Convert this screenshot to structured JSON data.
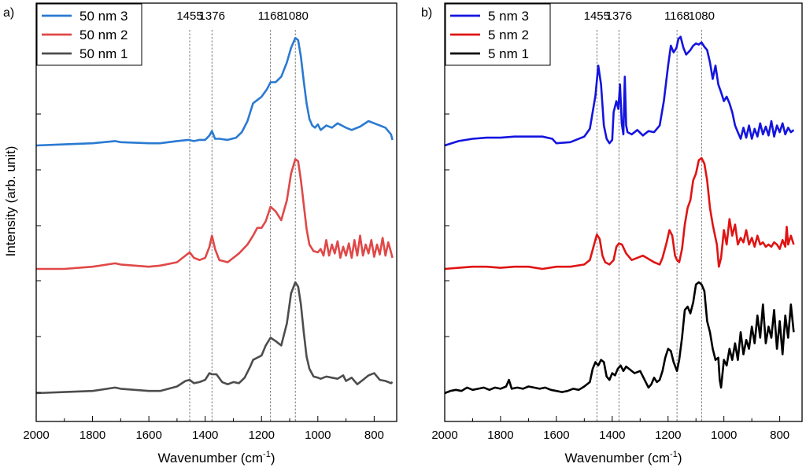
{
  "figure": {
    "ylabel": "Intensity (arb. unit)",
    "xlabel_main": "Wavenumber (cm",
    "xlabel_sup": "-1",
    "xlabel_end": ")"
  },
  "chart_data": [
    {
      "type": "line",
      "panel_label": "a)",
      "xlim": [
        2000,
        720
      ],
      "x_reversed": true,
      "xticks": [
        "2000",
        "1800",
        "1600",
        "1400",
        "1200",
        "1000",
        "800"
      ],
      "xtick_values": [
        2000,
        1800,
        1600,
        1400,
        1200,
        1000,
        800
      ],
      "y_tick_labels_shown": false,
      "peak_markers": [
        {
          "label": "1455",
          "x": 1455
        },
        {
          "label": "1376",
          "x": 1376
        },
        {
          "label": "1168",
          "x": 1168
        },
        {
          "label": "1080",
          "x": 1080
        }
      ],
      "legend": {
        "placement": "top-left"
      },
      "series": [
        {
          "name": "50 nm 3",
          "color": "#2a7ad2",
          "offset": 2,
          "x": [
            2000,
            1900,
            1800,
            1720,
            1700,
            1600,
            1560,
            1500,
            1460,
            1440,
            1420,
            1400,
            1385,
            1376,
            1365,
            1350,
            1320,
            1290,
            1270,
            1250,
            1240,
            1230,
            1215,
            1200,
            1180,
            1168,
            1150,
            1130,
            1110,
            1095,
            1080,
            1070,
            1060,
            1050,
            1040,
            1030,
            1020,
            1010,
            1000,
            990,
            970,
            950,
            930,
            900,
            880,
            850,
            820,
            800,
            780,
            760,
            740,
            735
          ],
          "y": [
            0.0,
            0.01,
            0.02,
            0.04,
            0.03,
            0.02,
            0.02,
            0.04,
            0.05,
            0.04,
            0.05,
            0.05,
            0.09,
            0.13,
            0.06,
            0.06,
            0.05,
            0.07,
            0.12,
            0.22,
            0.3,
            0.38,
            0.41,
            0.44,
            0.51,
            0.57,
            0.57,
            0.62,
            0.75,
            0.88,
            0.97,
            0.95,
            0.8,
            0.58,
            0.38,
            0.24,
            0.18,
            0.16,
            0.19,
            0.14,
            0.18,
            0.16,
            0.2,
            0.16,
            0.14,
            0.17,
            0.22,
            0.2,
            0.18,
            0.16,
            0.1,
            0.05
          ]
        },
        {
          "name": "50 nm 2",
          "color": "#e04848",
          "offset": 1,
          "x": [
            2000,
            1900,
            1800,
            1720,
            1700,
            1600,
            1560,
            1500,
            1470,
            1455,
            1440,
            1420,
            1400,
            1385,
            1376,
            1365,
            1350,
            1320,
            1300,
            1280,
            1250,
            1230,
            1215,
            1200,
            1185,
            1168,
            1150,
            1130,
            1110,
            1095,
            1080,
            1070,
            1060,
            1050,
            1040,
            1030,
            1015,
            1000,
            990,
            980,
            970,
            960,
            950,
            940,
            930,
            920,
            910,
            900,
            890,
            880,
            870,
            860,
            850,
            840,
            830,
            820,
            810,
            800,
            790,
            780,
            770,
            760,
            750,
            740,
            735
          ],
          "y": [
            0.0,
            0.0,
            0.02,
            0.05,
            0.04,
            0.02,
            0.03,
            0.06,
            0.12,
            0.15,
            0.1,
            0.08,
            0.1,
            0.2,
            0.3,
            0.18,
            0.08,
            0.06,
            0.1,
            0.14,
            0.22,
            0.3,
            0.37,
            0.37,
            0.43,
            0.56,
            0.52,
            0.44,
            0.62,
            0.86,
            0.99,
            0.97,
            0.8,
            0.58,
            0.36,
            0.22,
            0.16,
            0.15,
            0.18,
            0.12,
            0.26,
            0.12,
            0.22,
            0.14,
            0.25,
            0.1,
            0.2,
            0.12,
            0.23,
            0.1,
            0.26,
            0.12,
            0.3,
            0.12,
            0.22,
            0.14,
            0.26,
            0.11,
            0.22,
            0.13,
            0.28,
            0.12,
            0.24,
            0.15,
            0.1
          ]
        },
        {
          "name": "50 nm 1",
          "color": "#4d4d4d",
          "offset": 0,
          "x": [
            2000,
            1900,
            1800,
            1720,
            1700,
            1600,
            1560,
            1500,
            1470,
            1455,
            1440,
            1420,
            1400,
            1385,
            1376,
            1360,
            1340,
            1320,
            1300,
            1280,
            1260,
            1240,
            1230,
            1215,
            1200,
            1185,
            1168,
            1150,
            1130,
            1110,
            1095,
            1080,
            1070,
            1060,
            1050,
            1040,
            1030,
            1015,
            1000,
            990,
            970,
            950,
            930,
            910,
            900,
            880,
            860,
            840,
            820,
            800,
            780,
            760,
            740,
            735
          ],
          "y": [
            0.0,
            0.01,
            0.02,
            0.05,
            0.04,
            0.02,
            0.02,
            0.06,
            0.11,
            0.12,
            0.09,
            0.1,
            0.12,
            0.18,
            0.17,
            0.17,
            0.1,
            0.08,
            0.1,
            0.09,
            0.14,
            0.24,
            0.3,
            0.32,
            0.34,
            0.43,
            0.5,
            0.47,
            0.43,
            0.63,
            0.9,
            1.0,
            0.96,
            0.8,
            0.55,
            0.33,
            0.22,
            0.15,
            0.14,
            0.13,
            0.15,
            0.14,
            0.13,
            0.16,
            0.11,
            0.14,
            0.08,
            0.12,
            0.16,
            0.18,
            0.12,
            0.11,
            0.09,
            0.1
          ]
        }
      ]
    },
    {
      "type": "line",
      "panel_label": "b)",
      "xlim": [
        2000,
        720
      ],
      "x_reversed": true,
      "xticks": [
        "2000",
        "1800",
        "1600",
        "1400",
        "1200",
        "1000",
        "800"
      ],
      "xtick_values": [
        2000,
        1800,
        1600,
        1400,
        1200,
        1000,
        800
      ],
      "y_tick_labels_shown": false,
      "peak_markers": [
        {
          "label": "1455",
          "x": 1455
        },
        {
          "label": "1376",
          "x": 1376
        },
        {
          "label": "1168",
          "x": 1168
        },
        {
          "label": "1080",
          "x": 1080
        }
      ],
      "legend": {
        "placement": "top-left"
      },
      "series": [
        {
          "name": "5 nm 3",
          "color": "#1414e0",
          "offset": 2,
          "x": [
            2000,
            1950,
            1900,
            1850,
            1800,
            1750,
            1700,
            1650,
            1615,
            1600,
            1550,
            1500,
            1480,
            1460,
            1450,
            1440,
            1430,
            1420,
            1410,
            1400,
            1395,
            1385,
            1378,
            1372,
            1366,
            1360,
            1355,
            1350,
            1345,
            1330,
            1310,
            1290,
            1270,
            1250,
            1230,
            1215,
            1200,
            1190,
            1180,
            1170,
            1163,
            1155,
            1145,
            1135,
            1120,
            1110,
            1100,
            1090,
            1080,
            1070,
            1060,
            1050,
            1040,
            1030,
            1020,
            1010,
            1000,
            990,
            980,
            970,
            960,
            950,
            940,
            930,
            920,
            910,
            900,
            890,
            880,
            870,
            860,
            850,
            840,
            830,
            820,
            810,
            800,
            790,
            780,
            770,
            760,
            750
          ],
          "y": [
            0.0,
            0.04,
            0.06,
            0.07,
            0.07,
            0.08,
            0.08,
            0.08,
            0.06,
            0.02,
            0.03,
            0.08,
            0.15,
            0.45,
            0.72,
            0.55,
            0.18,
            0.06,
            0.02,
            0.05,
            0.3,
            0.4,
            0.33,
            0.55,
            0.2,
            0.1,
            0.62,
            0.18,
            0.12,
            0.1,
            0.14,
            0.09,
            0.13,
            0.12,
            0.18,
            0.4,
            0.72,
            0.9,
            0.84,
            0.88,
            0.96,
            0.98,
            0.88,
            0.82,
            0.86,
            0.9,
            0.92,
            0.91,
            0.93,
            0.89,
            0.86,
            0.75,
            0.6,
            0.72,
            0.55,
            0.48,
            0.4,
            0.44,
            0.38,
            0.3,
            0.18,
            0.12,
            0.06,
            0.16,
            0.07,
            0.18,
            0.06,
            0.15,
            0.08,
            0.2,
            0.1,
            0.17,
            0.09,
            0.22,
            0.08,
            0.18,
            0.12,
            0.2,
            0.1,
            0.16,
            0.12,
            0.14
          ]
        },
        {
          "name": "5 nm 2",
          "color": "#e01414",
          "offset": 1,
          "x": [
            2000,
            1950,
            1900,
            1850,
            1800,
            1750,
            1700,
            1650,
            1600,
            1550,
            1500,
            1480,
            1465,
            1455,
            1445,
            1435,
            1425,
            1410,
            1395,
            1385,
            1376,
            1365,
            1350,
            1330,
            1310,
            1290,
            1270,
            1250,
            1230,
            1220,
            1205,
            1195,
            1185,
            1175,
            1168,
            1160,
            1150,
            1140,
            1130,
            1120,
            1110,
            1100,
            1090,
            1080,
            1070,
            1060,
            1050,
            1040,
            1030,
            1025,
            1018,
            1010,
            1000,
            990,
            980,
            970,
            960,
            950,
            940,
            930,
            920,
            910,
            900,
            890,
            880,
            870,
            860,
            850,
            840,
            830,
            820,
            810,
            800,
            790,
            780,
            775,
            770,
            760,
            750
          ],
          "y": [
            0.0,
            0.01,
            0.02,
            0.02,
            0.01,
            0.02,
            0.02,
            0.0,
            0.02,
            0.02,
            0.04,
            0.08,
            0.22,
            0.31,
            0.27,
            0.12,
            0.06,
            0.04,
            0.08,
            0.2,
            0.23,
            0.22,
            0.14,
            0.08,
            0.1,
            0.12,
            0.09,
            0.06,
            0.04,
            0.1,
            0.24,
            0.35,
            0.3,
            0.12,
            0.08,
            0.06,
            0.18,
            0.4,
            0.55,
            0.62,
            0.8,
            0.86,
            0.98,
            1.0,
            0.95,
            0.8,
            0.55,
            0.4,
            0.28,
            0.22,
            0.02,
            0.1,
            0.35,
            0.22,
            0.45,
            0.3,
            0.4,
            0.22,
            0.28,
            0.24,
            0.35,
            0.22,
            0.28,
            0.2,
            0.3,
            0.22,
            0.24,
            0.2,
            0.22,
            0.2,
            0.24,
            0.22,
            0.18,
            0.26,
            0.2,
            0.38,
            0.22,
            0.3,
            0.22
          ]
        },
        {
          "name": "5 nm 1",
          "color": "#000000",
          "offset": 0,
          "x": [
            2000,
            1980,
            1960,
            1940,
            1920,
            1900,
            1880,
            1860,
            1840,
            1820,
            1800,
            1780,
            1770,
            1760,
            1740,
            1720,
            1700,
            1680,
            1660,
            1640,
            1620,
            1600,
            1580,
            1560,
            1540,
            1520,
            1500,
            1480,
            1470,
            1460,
            1450,
            1440,
            1430,
            1420,
            1410,
            1400,
            1390,
            1380,
            1370,
            1360,
            1350,
            1340,
            1320,
            1300,
            1280,
            1270,
            1260,
            1250,
            1240,
            1230,
            1220,
            1210,
            1200,
            1190,
            1180,
            1168,
            1160,
            1150,
            1140,
            1130,
            1120,
            1110,
            1100,
            1090,
            1080,
            1070,
            1060,
            1050,
            1040,
            1030,
            1020,
            1015,
            1010,
            1000,
            990,
            980,
            970,
            960,
            950,
            940,
            930,
            920,
            910,
            900,
            890,
            880,
            870,
            860,
            850,
            840,
            830,
            820,
            810,
            800,
            790,
            780,
            770,
            760,
            750
          ],
          "y": [
            0.0,
            0.02,
            0.03,
            0.02,
            0.05,
            0.03,
            0.04,
            0.05,
            0.03,
            0.05,
            0.04,
            0.06,
            0.12,
            0.04,
            0.05,
            0.04,
            0.06,
            0.05,
            0.04,
            0.05,
            0.03,
            0.02,
            0.01,
            0.02,
            0.04,
            0.03,
            0.06,
            0.1,
            0.22,
            0.28,
            0.25,
            0.3,
            0.28,
            0.15,
            0.12,
            0.18,
            0.16,
            0.22,
            0.25,
            0.2,
            0.24,
            0.22,
            0.18,
            0.2,
            0.1,
            0.05,
            0.08,
            0.14,
            0.1,
            0.12,
            0.2,
            0.32,
            0.4,
            0.38,
            0.28,
            0.2,
            0.3,
            0.5,
            0.75,
            0.78,
            0.72,
            0.82,
            0.98,
            1.0,
            0.98,
            0.92,
            0.65,
            0.55,
            0.4,
            0.3,
            0.32,
            0.12,
            0.05,
            0.3,
            0.25,
            0.4,
            0.3,
            0.45,
            0.3,
            0.55,
            0.35,
            0.48,
            0.4,
            0.6,
            0.45,
            0.7,
            0.5,
            0.8,
            0.45,
            0.6,
            0.5,
            0.75,
            0.4,
            0.65,
            0.35,
            0.7,
            0.5,
            0.8,
            0.55
          ]
        }
      ]
    }
  ]
}
